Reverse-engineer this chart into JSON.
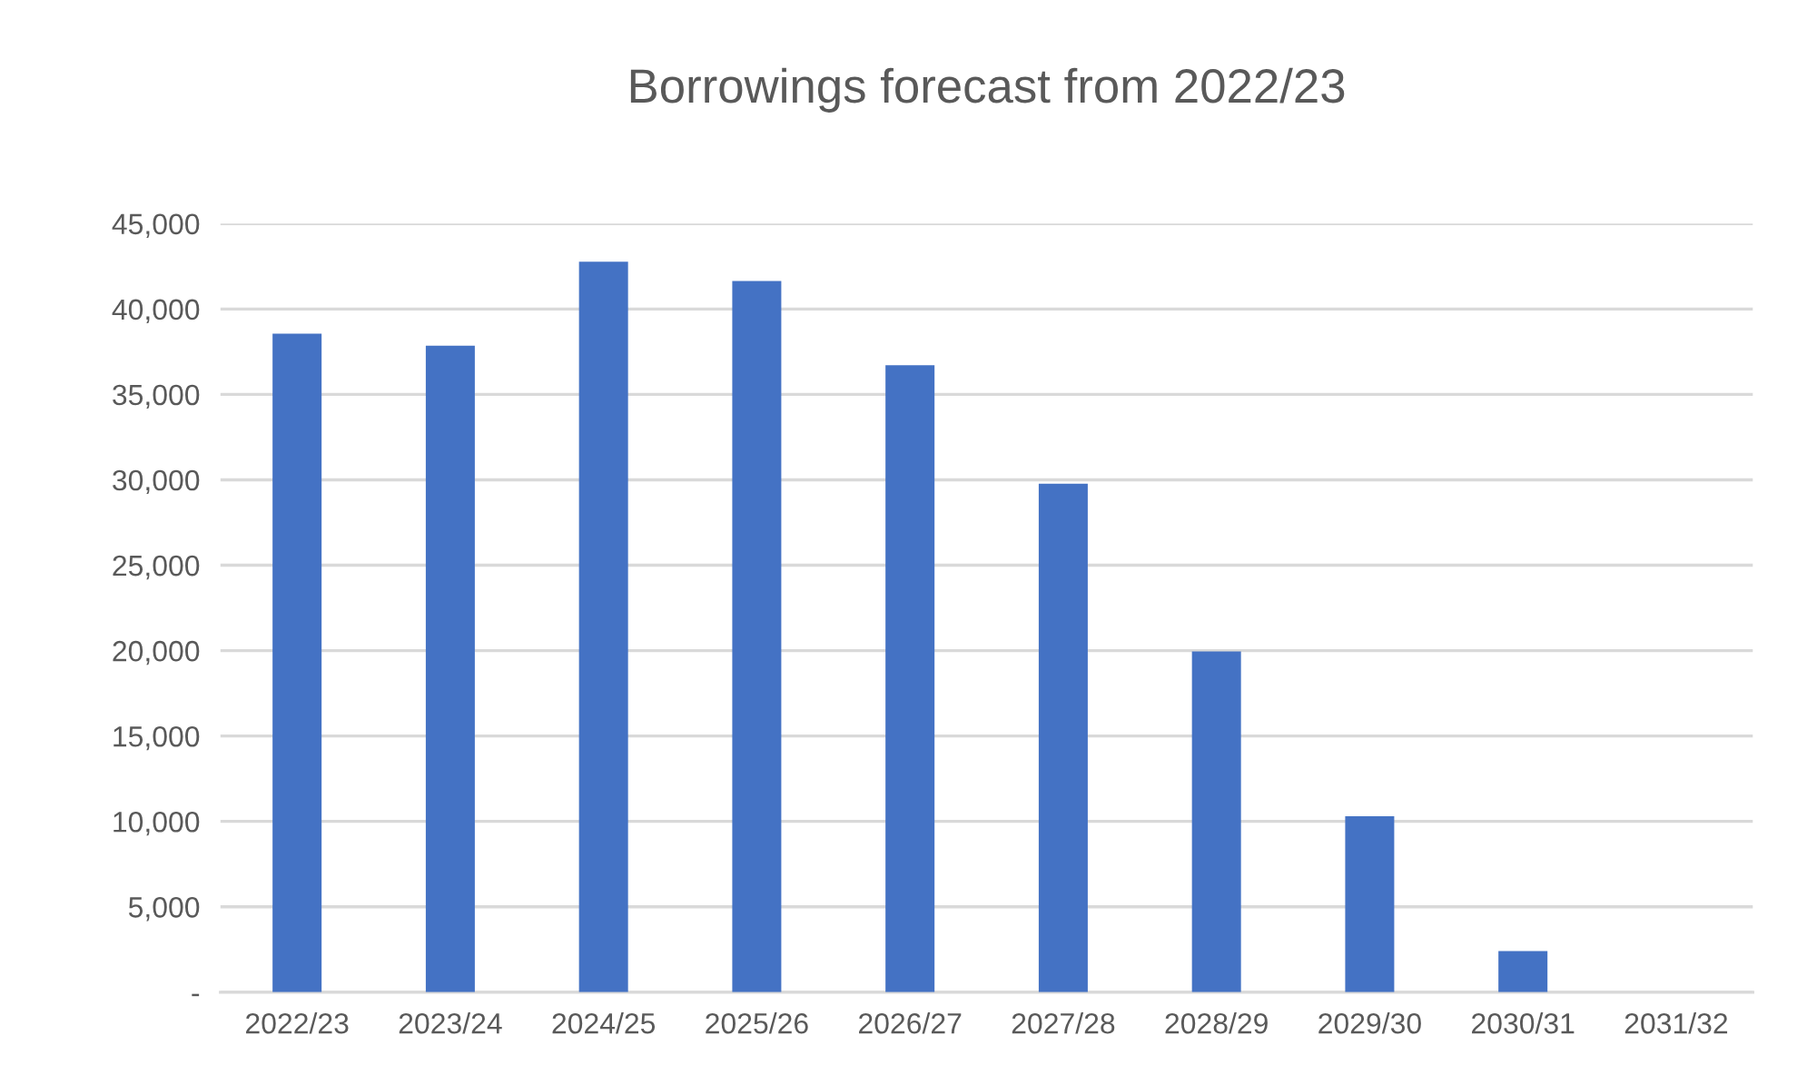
{
  "chart_data": {
    "type": "bar",
    "title": "Borrowings forecast from 2022/23",
    "categories": [
      "2022/23",
      "2023/24",
      "2024/25",
      "2025/26",
      "2026/27",
      "2027/28",
      "2028/29",
      "2029/30",
      "2030/31",
      "2031/32"
    ],
    "values": [
      38550,
      37850,
      42770,
      41640,
      36710,
      29770,
      19950,
      10310,
      2410,
      0
    ],
    "color": "#4472c4",
    "ylim": [
      0,
      45000
    ],
    "yticks": [
      {
        "value": 0,
        "label": "-"
      },
      {
        "value": 5000,
        "label": "5,000"
      },
      {
        "value": 10000,
        "label": "10,000"
      },
      {
        "value": 15000,
        "label": "15,000"
      },
      {
        "value": 20000,
        "label": "20,000"
      },
      {
        "value": 25000,
        "label": "25,000"
      },
      {
        "value": 30000,
        "label": "30,000"
      },
      {
        "value": 35000,
        "label": "35,000"
      },
      {
        "value": 40000,
        "label": "40,000"
      },
      {
        "value": 45000,
        "label": "45,000"
      }
    ],
    "grid": "y",
    "legend": false
  }
}
